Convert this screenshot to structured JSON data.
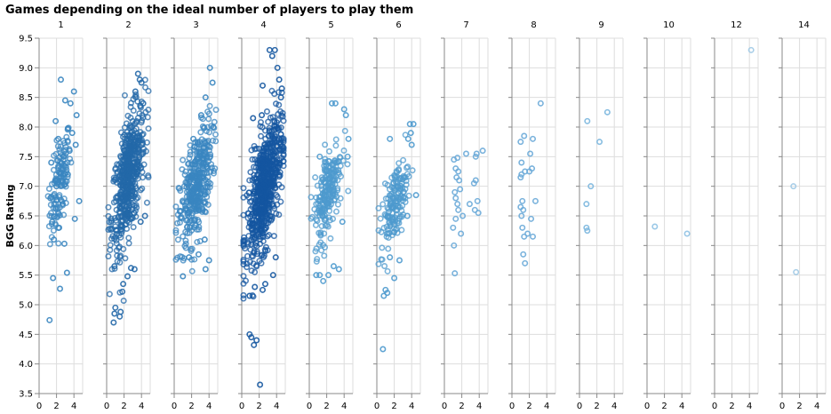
{
  "chart_data": {
    "type": "scatter",
    "title": "Games depending on the ideal number of players to play them",
    "ylabel": "BGG Rating",
    "xlabel": "",
    "ylim": [
      3.5,
      9.5
    ],
    "yticks": [
      "3.5",
      "4.0",
      "4.5",
      "5.0",
      "5.5",
      "6.0",
      "6.5",
      "7.0",
      "7.5",
      "8.0",
      "8.5",
      "9.0",
      "9.5"
    ],
    "xlim": [
      0,
      5
    ],
    "xticks": [
      "0",
      "2",
      "4"
    ],
    "grid": true,
    "colors": {
      "1": "#3a86c0",
      "2": "#2368a8",
      "3": "#3a86c0",
      "4": "#1456a0",
      "5": "#4e9ace",
      "6": "#4e9ace",
      "7": "#6aaad8",
      "8": "#6aaad8",
      "9": "#7ab6de",
      "10": "#8fc2e4",
      "12": "#9ec9e6",
      "14": "#9ec9e6"
    },
    "facets": [
      {
        "label": "1",
        "points": [
          [
            1.2,
            4.74
          ],
          [
            1.6,
            5.45
          ],
          [
            2.4,
            5.27
          ],
          [
            3.2,
            5.54
          ],
          [
            4.1,
            6.45
          ],
          [
            4.6,
            6.75
          ],
          [
            1.7,
            6.1
          ],
          [
            2.9,
            6.03
          ],
          [
            1.4,
            7.4
          ],
          [
            2.2,
            7.8
          ],
          [
            2.5,
            8.8
          ],
          [
            3.0,
            8.45
          ],
          [
            3.6,
            8.4
          ],
          [
            4.0,
            8.6
          ],
          [
            4.3,
            8.2
          ],
          [
            3.8,
            7.9
          ],
          [
            2.0,
            7.0
          ],
          [
            2.7,
            6.7
          ],
          [
            3.3,
            7.2
          ],
          [
            1.5,
            6.4
          ],
          [
            2.8,
            7.5
          ],
          [
            1.9,
            8.1
          ],
          [
            3.5,
            7.6
          ],
          [
            4.2,
            7.7
          ],
          [
            1.3,
            6.8
          ],
          [
            2.3,
            6.3
          ]
        ],
        "cloud": {
          "x": [
            1.2,
            3.6
          ],
          "y": [
            6.1,
            8.0
          ],
          "n": 130
        }
      },
      {
        "label": "2",
        "points": [
          [
            0.8,
            4.7
          ],
          [
            0.9,
            4.85
          ],
          [
            1.0,
            4.95
          ],
          [
            1.5,
            4.8
          ],
          [
            1.6,
            4.88
          ],
          [
            1.8,
            5.22
          ],
          [
            1.9,
            5.35
          ],
          [
            2.4,
            5.48
          ],
          [
            2.8,
            5.62
          ],
          [
            3.2,
            5.6
          ],
          [
            0.9,
            5.65
          ],
          [
            3.6,
            8.9
          ],
          [
            3.8,
            8.8
          ],
          [
            3.3,
            8.6
          ],
          [
            4.0,
            8.75
          ],
          [
            4.2,
            8.4
          ],
          [
            3.9,
            6.4
          ],
          [
            4.4,
            6.5
          ]
        ],
        "cloud": {
          "x": [
            0.6,
            4.4
          ],
          "y": [
            5.9,
            8.4
          ],
          "n": 520
        }
      },
      {
        "label": "3",
        "points": [
          [
            1.0,
            5.48
          ],
          [
            1.7,
            5.8
          ],
          [
            2.8,
            5.85
          ],
          [
            3.6,
            5.6
          ],
          [
            4.0,
            5.75
          ],
          [
            4.1,
            9.0
          ],
          [
            4.4,
            8.75
          ],
          [
            3.6,
            8.5
          ],
          [
            3.1,
            8.2
          ],
          [
            4.5,
            8.0
          ],
          [
            2.2,
            7.8
          ],
          [
            3.5,
            6.1
          ]
        ],
        "cloud": {
          "x": [
            0.6,
            4.4
          ],
          "y": [
            5.9,
            8.1
          ],
          "n": 380
        }
      },
      {
        "label": "4",
        "points": [
          [
            0.9,
            4.5
          ],
          [
            1.1,
            4.45
          ],
          [
            1.4,
            4.32
          ],
          [
            1.7,
            4.4
          ],
          [
            2.1,
            3.65
          ],
          [
            0.9,
            5.15
          ],
          [
            1.5,
            5.3
          ],
          [
            2.4,
            5.25
          ],
          [
            2.7,
            5.35
          ],
          [
            3.6,
            5.5
          ],
          [
            3.9,
            5.8
          ],
          [
            3.8,
            9.3
          ],
          [
            3.2,
            9.3
          ],
          [
            3.5,
            9.2
          ],
          [
            4.1,
            9.0
          ],
          [
            4.3,
            8.8
          ],
          [
            4.6,
            8.65
          ],
          [
            2.4,
            8.7
          ],
          [
            4.5,
            8.5
          ],
          [
            1.3,
            8.15
          ],
          [
            2.3,
            8.2
          ]
        ],
        "cloud": {
          "x": [
            0.6,
            4.6
          ],
          "y": [
            5.7,
            8.2
          ],
          "n": 650
        }
      },
      {
        "label": "5",
        "points": [
          [
            0.8,
            5.5
          ],
          [
            1.2,
            5.5
          ],
          [
            1.6,
            5.4
          ],
          [
            2.2,
            5.5
          ],
          [
            2.8,
            5.65
          ],
          [
            3.4,
            5.6
          ],
          [
            2.6,
            8.4
          ],
          [
            3.0,
            8.4
          ],
          [
            4.0,
            8.3
          ],
          [
            4.2,
            8.2
          ],
          [
            4.5,
            7.8
          ],
          [
            4.4,
            7.5
          ],
          [
            3.8,
            6.4
          ],
          [
            1.2,
            7.5
          ]
        ],
        "cloud": {
          "x": [
            0.6,
            3.8
          ],
          "y": [
            6.0,
            7.9
          ],
          "n": 210
        }
      },
      {
        "label": "6",
        "points": [
          [
            0.7,
            4.25
          ],
          [
            0.8,
            5.15
          ],
          [
            1.0,
            5.25
          ],
          [
            1.2,
            5.2
          ],
          [
            2.0,
            5.45
          ],
          [
            2.6,
            5.75
          ],
          [
            1.5,
            5.8
          ],
          [
            3.8,
            8.05
          ],
          [
            4.2,
            8.05
          ],
          [
            3.9,
            7.9
          ],
          [
            3.6,
            7.8
          ],
          [
            4.0,
            7.7
          ],
          [
            4.5,
            6.85
          ],
          [
            3.5,
            6.5
          ],
          [
            1.5,
            7.8
          ]
        ],
        "cloud": {
          "x": [
            0.5,
            3.6
          ],
          "y": [
            5.9,
            7.5
          ],
          "n": 160
        }
      },
      {
        "label": "7",
        "points": [
          [
            1.2,
            5.53
          ],
          [
            1.1,
            6.0
          ],
          [
            1.0,
            6.3
          ],
          [
            1.3,
            6.45
          ],
          [
            1.5,
            6.7
          ],
          [
            1.2,
            6.9
          ],
          [
            1.8,
            6.95
          ],
          [
            1.6,
            7.25
          ],
          [
            1.3,
            7.3
          ],
          [
            1.1,
            7.45
          ],
          [
            1.5,
            7.48
          ],
          [
            1.4,
            7.15
          ],
          [
            1.7,
            7.1
          ],
          [
            2.5,
            7.55
          ],
          [
            3.6,
            7.5
          ],
          [
            3.7,
            7.55
          ],
          [
            4.4,
            7.6
          ],
          [
            3.4,
            7.05
          ],
          [
            3.6,
            7.1
          ],
          [
            2.9,
            6.7
          ],
          [
            3.8,
            6.75
          ],
          [
            3.5,
            6.6
          ],
          [
            3.9,
            6.55
          ],
          [
            1.6,
            6.6
          ],
          [
            1.3,
            6.8
          ],
          [
            2.1,
            6.5
          ],
          [
            1.9,
            6.2
          ]
        ]
      },
      {
        "label": "8",
        "points": [
          [
            1.5,
            5.7
          ],
          [
            1.3,
            5.85
          ],
          [
            2.4,
            6.15
          ],
          [
            1.8,
            6.2
          ],
          [
            1.4,
            6.15
          ],
          [
            1.2,
            6.3
          ],
          [
            1.1,
            6.5
          ],
          [
            1.3,
            6.6
          ],
          [
            1.0,
            6.65
          ],
          [
            1.2,
            6.75
          ],
          [
            2.2,
            6.45
          ],
          [
            2.7,
            6.75
          ],
          [
            1.0,
            7.15
          ],
          [
            1.1,
            7.2
          ],
          [
            1.5,
            7.25
          ],
          [
            2.0,
            7.25
          ],
          [
            2.3,
            7.3
          ],
          [
            1.1,
            7.4
          ],
          [
            2.1,
            7.55
          ],
          [
            1.0,
            7.75
          ],
          [
            1.4,
            7.85
          ],
          [
            2.4,
            7.8
          ],
          [
            3.3,
            8.4
          ]
        ]
      },
      {
        "label": "9",
        "points": [
          [
            0.9,
            6.25
          ],
          [
            0.8,
            6.3
          ],
          [
            0.8,
            6.7
          ],
          [
            1.3,
            7.0
          ],
          [
            0.9,
            8.1
          ],
          [
            2.3,
            7.75
          ],
          [
            3.2,
            8.25
          ]
        ]
      },
      {
        "label": "10",
        "points": [
          [
            0.9,
            6.32
          ],
          [
            4.6,
            6.2
          ]
        ]
      },
      {
        "label": "12",
        "points": [
          [
            4.2,
            9.3
          ]
        ]
      },
      {
        "label": "14",
        "points": [
          [
            1.3,
            7.0
          ],
          [
            1.6,
            5.55
          ]
        ]
      }
    ]
  }
}
